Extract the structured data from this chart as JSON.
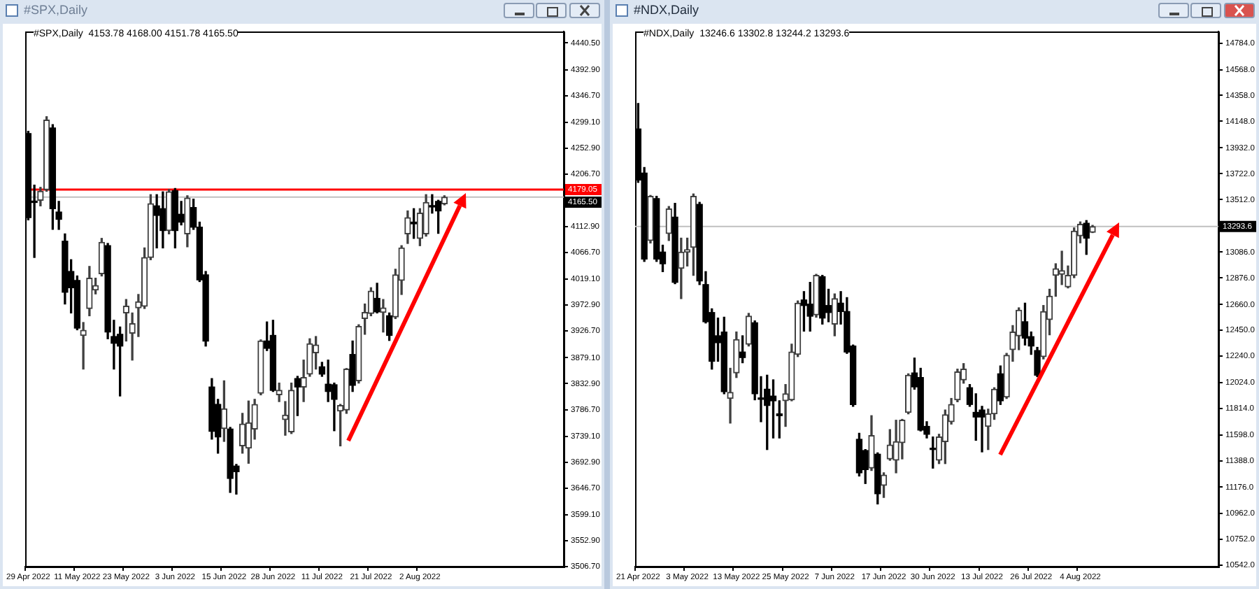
{
  "chart_data": [
    {
      "type": "candlestick",
      "title": "#SPX,Daily",
      "subtitle": "#SPX,Daily  4153.78 4168.00 4151.78 4165.50",
      "categories": [
        "29 Apr 2022",
        null,
        null,
        null,
        null,
        null,
        null,
        null,
        "11 May 2022",
        null,
        null,
        null,
        null,
        null,
        null,
        null,
        "23 May 2022",
        null,
        null,
        null,
        null,
        null,
        null,
        null,
        "3 Jun 2022",
        null,
        null,
        null,
        null,
        null,
        null,
        null,
        "15 Jun 2022",
        null,
        null,
        null,
        null,
        null,
        null,
        null,
        "28 Jun 2022",
        null,
        null,
        null,
        null,
        null,
        null,
        null,
        "11 Jul 2022",
        null,
        null,
        null,
        null,
        null,
        null,
        null,
        "21 Jul 2022",
        null,
        null,
        null,
        null,
        null,
        null,
        null,
        "2 Aug 2022",
        null,
        null,
        null,
        null,
        null,
        null,
        null,
        null,
        null,
        null,
        null,
        null,
        null,
        null,
        null,
        null,
        null,
        null,
        null,
        null,
        null,
        null,
        null
      ],
      "ohlc": [
        [
          4279,
          4283,
          4125,
          4129
        ],
        [
          4158,
          4187,
          4058,
          4156
        ],
        [
          4160,
          4183,
          4150,
          4176
        ],
        [
          4179,
          4309,
          4176,
          4303
        ],
        [
          4289,
          4295,
          4108,
          4145
        ],
        [
          4139,
          4158,
          4108,
          4126
        ],
        [
          4087,
          4100,
          3975,
          3996
        ],
        [
          4033,
          4054,
          3959,
          4004
        ],
        [
          4017,
          4025,
          3929,
          3932
        ],
        [
          3919,
          3942,
          3859,
          3928
        ],
        [
          3967,
          4042,
          3954,
          4021
        ],
        [
          4000,
          4021,
          3993,
          4008
        ],
        [
          4029,
          4092,
          4025,
          4085
        ],
        [
          4079,
          4083,
          3913,
          3925
        ],
        [
          3917,
          3946,
          3859,
          3905
        ],
        [
          3921,
          3934,
          3811,
          3900
        ],
        [
          3959,
          3983,
          3909,
          3971
        ],
        [
          3923,
          3959,
          3875,
          3940
        ],
        [
          3968,
          3992,
          3917,
          3979
        ],
        [
          3971,
          4075,
          3967,
          4058
        ],
        [
          4058,
          4170,
          4054,
          4154
        ],
        [
          4150,
          4170,
          4075,
          4133
        ],
        [
          4145,
          4175,
          4075,
          4106
        ],
        [
          4106,
          4179,
          4100,
          4175
        ],
        [
          4177,
          4181,
          4075,
          4106
        ],
        [
          4135,
          4158,
          4116,
          4121
        ],
        [
          4100,
          4168,
          4077,
          4164
        ],
        [
          4147,
          4162,
          4108,
          4112
        ],
        [
          4112,
          4121,
          4015,
          4018
        ],
        [
          4027,
          4033,
          3900,
          3909
        ],
        [
          3827,
          3842,
          3734,
          3748
        ],
        [
          3796,
          3805,
          3709,
          3738
        ],
        [
          3753,
          3838,
          3730,
          3788
        ],
        [
          3752,
          3755,
          3639,
          3664
        ],
        [
          3686,
          3689,
          3636,
          3676
        ],
        [
          3722,
          3780,
          3709,
          3761
        ],
        [
          3718,
          3802,
          3691,
          3763
        ],
        [
          3752,
          3805,
          3734,
          3796
        ],
        [
          3816,
          3911,
          3813,
          3909
        ],
        [
          3909,
          3943,
          3892,
          3896
        ],
        [
          3919,
          3946,
          3819,
          3821
        ],
        [
          3813,
          3834,
          3801,
          3821
        ],
        [
          3769,
          3801,
          3741,
          3777
        ],
        [
          3747,
          3834,
          3744,
          3821
        ],
        [
          3842,
          3846,
          3776,
          3827
        ],
        [
          3827,
          3875,
          3801,
          3844
        ],
        [
          3850,
          3913,
          3846,
          3904
        ],
        [
          3888,
          3917,
          3859,
          3902
        ],
        [
          3863,
          3871,
          3846,
          3850
        ],
        [
          3832,
          3875,
          3801,
          3819
        ],
        [
          3831,
          3834,
          3749,
          3805
        ],
        [
          3784,
          3796,
          3722,
          3794
        ],
        [
          3786,
          3860,
          3780,
          3859
        ],
        [
          3885,
          3909,
          3819,
          3830
        ],
        [
          3838,
          3938,
          3834,
          3935
        ],
        [
          3949,
          3975,
          3921,
          3960
        ],
        [
          3958,
          4004,
          3954,
          3998
        ],
        [
          3985,
          4012,
          3959,
          3961
        ],
        [
          3960,
          3983,
          3925,
          3968
        ],
        [
          3954,
          3959,
          3910,
          3919
        ],
        [
          3952,
          4037,
          3949,
          4027
        ],
        [
          4017,
          4079,
          3992,
          4075
        ],
        [
          4100,
          4141,
          4083,
          4129
        ],
        [
          4121,
          4145,
          4092,
          4118
        ],
        [
          4092,
          4145,
          4079,
          4137
        ],
        [
          4100,
          4170,
          4096,
          4156
        ],
        [
          4150,
          4170,
          4137,
          4148
        ],
        [
          4158,
          4160,
          4101,
          4141
        ],
        [
          4153.78,
          4168,
          4151.78,
          4165.5
        ],
        null,
        null,
        null,
        null,
        null,
        null,
        null,
        null,
        null,
        null,
        null,
        null,
        null,
        null,
        null,
        null,
        null,
        null,
        null
      ],
      "ylim": [
        3506.7,
        4461
      ],
      "yticks": [
        {
          "value": 4440.5,
          "label": "4440.50"
        },
        {
          "value": 4392.9,
          "label": "4392.90"
        },
        {
          "value": 4346.7,
          "label": "4346.70"
        },
        {
          "value": 4299.1,
          "label": "4299.10"
        },
        {
          "value": 4252.9,
          "label": "4252.90"
        },
        {
          "value": 4206.7,
          "label": "4206.70"
        },
        {
          "value": 4112.9,
          "label": "4112.90"
        },
        {
          "value": 4066.7,
          "label": "4066.70"
        },
        {
          "value": 4019.1,
          "label": "4019.10"
        },
        {
          "value": 3972.9,
          "label": "3972.90"
        },
        {
          "value": 3926.7,
          "label": "3926.70"
        },
        {
          "value": 3879.1,
          "label": "3879.10"
        },
        {
          "value": 3832.9,
          "label": "3832.90"
        },
        {
          "value": 3786.7,
          "label": "3786.70"
        },
        {
          "value": 3739.1,
          "label": "3739.10"
        },
        {
          "value": 3692.9,
          "label": "3692.90"
        },
        {
          "value": 3646.7,
          "label": "3646.70"
        },
        {
          "value": 3599.1,
          "label": "3599.10"
        },
        {
          "value": 3552.9,
          "label": "3552.90"
        },
        {
          "value": 3506.7,
          "label": "3506.70"
        }
      ],
      "ref_lines": [
        {
          "axis": "y",
          "value": 4179.05,
          "label": "4179.05",
          "color": "#ff0000"
        },
        {
          "axis": "y",
          "value": 4165.5,
          "label": "4165.50",
          "color": "#c0c0c0"
        }
      ]
    },
    {
      "type": "candlestick",
      "title": "#NDX,Daily",
      "subtitle": "#NDX,Daily  13246.6 13302.8 13244.2 13293.6",
      "categories": [
        "21 Apr 2022",
        null,
        null,
        null,
        null,
        null,
        null,
        null,
        "3 May 2022",
        null,
        null,
        null,
        null,
        null,
        null,
        null,
        "13 May 2022",
        null,
        null,
        null,
        null,
        null,
        null,
        null,
        "25 May 2022",
        null,
        null,
        null,
        null,
        null,
        null,
        null,
        "7 Jun 2022",
        null,
        null,
        null,
        null,
        null,
        null,
        null,
        "17 Jun 2022",
        null,
        null,
        null,
        null,
        null,
        null,
        null,
        "30 Jun 2022",
        null,
        null,
        null,
        null,
        null,
        null,
        null,
        "13 Jul 2022",
        null,
        null,
        null,
        null,
        null,
        null,
        null,
        "26 Jul 2022",
        null,
        null,
        null,
        null,
        null,
        null,
        null,
        "4 Aug 2022",
        null,
        null,
        null,
        null,
        null,
        null,
        null,
        null,
        null,
        null,
        null,
        null,
        null,
        null,
        null,
        null,
        null,
        null,
        null,
        null,
        null,
        null
      ],
      "ohlc": [
        [
          14086,
          14293,
          13652,
          13671
        ],
        [
          13727,
          13773,
          13010,
          13029
        ],
        [
          13180,
          13546,
          13160,
          13539
        ],
        [
          13520,
          13539,
          13010,
          13029
        ],
        [
          13086,
          13142,
          12927,
          12991
        ],
        [
          13237,
          13456,
          13180,
          13437
        ],
        [
          13369,
          13482,
          12829,
          12840
        ],
        [
          12954,
          13199,
          12708,
          13086
        ],
        [
          13086,
          13199,
          12973,
          13105
        ],
        [
          13124,
          13558,
          12897,
          13539
        ],
        [
          13474,
          13490,
          12822,
          12852
        ],
        [
          12822,
          12927,
          12510,
          12520
        ],
        [
          12595,
          12625,
          12135,
          12199
        ],
        [
          12406,
          12550,
          12199,
          12350
        ],
        [
          12437,
          12557,
          11935,
          11953
        ],
        [
          11897,
          12142,
          11697,
          11946
        ],
        [
          12104,
          12437,
          12067,
          12376
        ],
        [
          12274,
          12406,
          12187,
          12229
        ],
        [
          12338,
          12588,
          12323,
          12565
        ],
        [
          12512,
          12527,
          11886,
          11935
        ],
        [
          11897,
          12074,
          11708,
          11890
        ],
        [
          11972,
          12086,
          11482,
          11840
        ],
        [
          11916,
          12048,
          11576,
          11878
        ],
        [
          11772,
          11878,
          11576,
          11757
        ],
        [
          11878,
          12010,
          11670,
          11935
        ],
        [
          11886,
          12338,
          11878,
          12274
        ],
        [
          12255,
          12689,
          12237,
          12671
        ],
        [
          12697,
          12765,
          12444,
          12652
        ],
        [
          12663,
          12840,
          12444,
          12565
        ],
        [
          12576,
          12905,
          12557,
          12897
        ],
        [
          12886,
          12897,
          12501,
          12550
        ],
        [
          12652,
          12784,
          12520,
          12595
        ],
        [
          12501,
          12746,
          12406,
          12708
        ],
        [
          12671,
          12765,
          12501,
          12603
        ],
        [
          12603,
          12716,
          12263,
          12274
        ],
        [
          12323,
          12331,
          11833,
          11848
        ],
        [
          11565,
          11614,
          11267,
          11293
        ],
        [
          11474,
          11482,
          11206,
          11319
        ],
        [
          11331,
          11757,
          11312,
          11595
        ],
        [
          11444,
          11455,
          11040,
          11123
        ],
        [
          11191,
          11293,
          11093,
          11274
        ],
        [
          11406,
          11644,
          11395,
          11519
        ],
        [
          11395,
          11720,
          11293,
          11546
        ],
        [
          11538,
          11727,
          11406,
          11720
        ],
        [
          11784,
          12097,
          11772,
          12086
        ],
        [
          12104,
          12225,
          11972,
          11991
        ],
        [
          12067,
          12142,
          11633,
          11640
        ],
        [
          11670,
          11708,
          11576,
          11606
        ],
        [
          11493,
          11584,
          11331,
          11482
        ],
        [
          11395,
          11606,
          11368,
          11584
        ],
        [
          11546,
          11803,
          11368,
          11765
        ],
        [
          11708,
          11897,
          11689,
          11848
        ],
        [
          11886,
          12135,
          11870,
          12112
        ],
        [
          12048,
          12180,
          12021,
          12135
        ],
        [
          11984,
          12010,
          11833,
          11848
        ],
        [
          11784,
          11935,
          11557,
          11746
        ],
        [
          11803,
          11833,
          11463,
          11746
        ],
        [
          11670,
          11810,
          11482,
          11772
        ],
        [
          11772,
          11984,
          11727,
          11972
        ],
        [
          12097,
          12161,
          11848,
          11878
        ],
        [
          11908,
          12263,
          11897,
          12248
        ],
        [
          12293,
          12489,
          12199,
          12437
        ],
        [
          12406,
          12633,
          12293,
          12614
        ],
        [
          12520,
          12671,
          12331,
          12387
        ],
        [
          12399,
          12437,
          12255,
          12323
        ],
        [
          12286,
          12312,
          12074,
          12086
        ],
        [
          12237,
          12652,
          12218,
          12603
        ],
        [
          12538,
          12784,
          12414,
          12727
        ],
        [
          12897,
          12991,
          12727,
          12950
        ],
        [
          12905,
          13093,
          12822,
          12935
        ],
        [
          12803,
          12973,
          12795,
          12897
        ],
        [
          12897,
          13282,
          12878,
          13256
        ],
        [
          13218,
          13331,
          13161,
          13312
        ],
        [
          13320,
          13342,
          13067,
          13199
        ],
        [
          13246.6,
          13302.8,
          13244.2,
          13293.6
        ],
        null,
        null,
        null,
        null,
        null,
        null,
        null,
        null,
        null,
        null,
        null,
        null,
        null,
        null,
        null,
        null,
        null,
        null,
        null,
        null
      ],
      "ylim": [
        10531,
        14878
      ],
      "yticks": [
        {
          "value": 14784,
          "label": "14784.0"
        },
        {
          "value": 14568,
          "label": "14568.0"
        },
        {
          "value": 14358,
          "label": "14358.0"
        },
        {
          "value": 14148,
          "label": "14148.0"
        },
        {
          "value": 13932,
          "label": "13932.0"
        },
        {
          "value": 13722,
          "label": "13722.0"
        },
        {
          "value": 13512,
          "label": "13512.0"
        },
        {
          "value": 13086,
          "label": "13086.0"
        },
        {
          "value": 12876,
          "label": "12876.0"
        },
        {
          "value": 12660,
          "label": "12660.0"
        },
        {
          "value": 12450,
          "label": "12450.0"
        },
        {
          "value": 12240,
          "label": "12240.0"
        },
        {
          "value": 12024,
          "label": "12024.0"
        },
        {
          "value": 11814,
          "label": "11814.0"
        },
        {
          "value": 11598,
          "label": "11598.0"
        },
        {
          "value": 11388,
          "label": "11388.0"
        },
        {
          "value": 11176,
          "label": "11176.0"
        },
        {
          "value": 10962,
          "label": "10962.0"
        },
        {
          "value": 10752,
          "label": "10752.0"
        },
        {
          "value": 10542,
          "label": "10542.0"
        }
      ],
      "ref_lines": [
        {
          "axis": "y",
          "value": 13293.6,
          "label": "13293.6",
          "color": "#c0c0c0"
        }
      ]
    }
  ]
}
